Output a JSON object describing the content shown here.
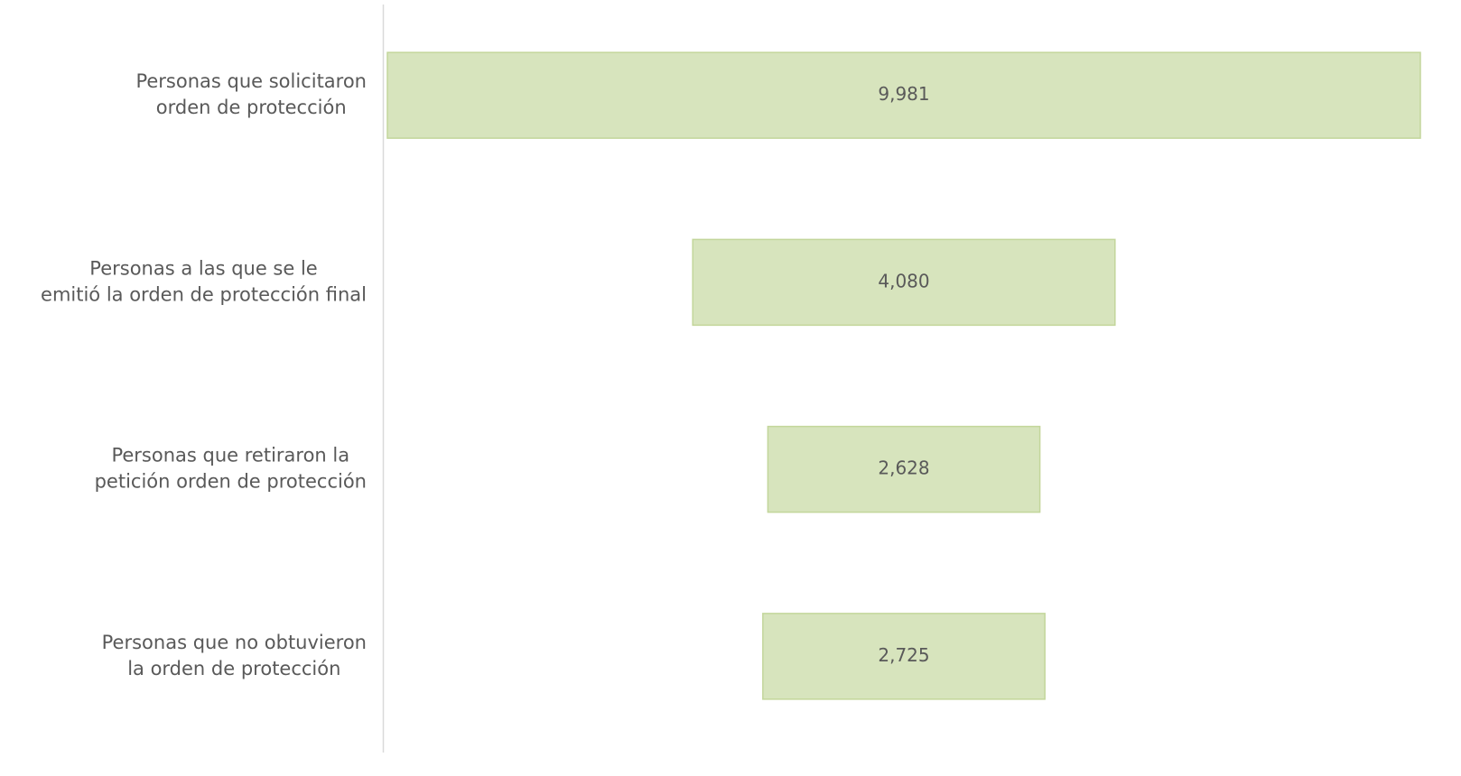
{
  "chart_data": {
    "type": "funnel",
    "categories": [
      [
        "Personas que solicitaron",
        "orden de protección"
      ],
      [
        "Personas a las que se le",
        "emitió la orden de protección final"
      ],
      [
        "Personas que retiraron la",
        "petición orden de protección"
      ],
      [
        "Personas que no obtuvieron",
        "la orden de protección"
      ]
    ],
    "values": [
      9981,
      4080,
      2628,
      2725
    ],
    "value_labels": [
      "9,981",
      "4,080",
      "2,628",
      "2,725"
    ],
    "color": "#d7e4bd"
  }
}
